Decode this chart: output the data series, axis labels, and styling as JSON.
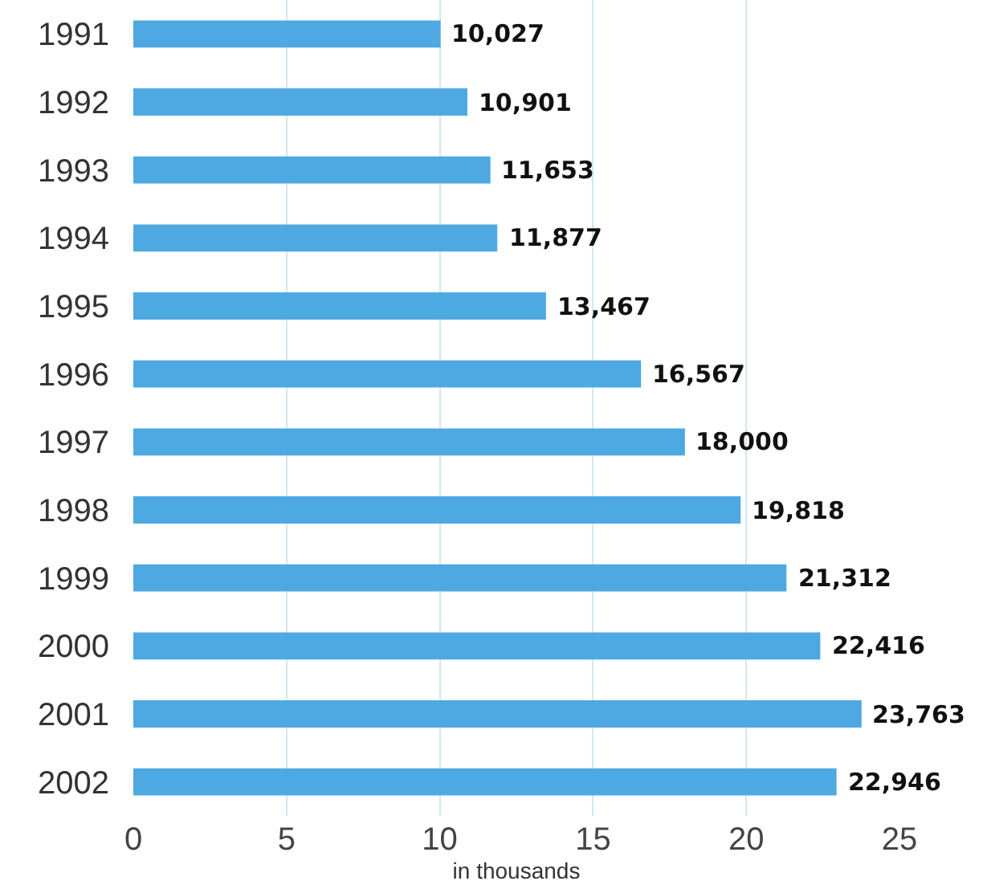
{
  "chart_data": {
    "type": "bar",
    "orientation": "horizontal",
    "xlabel": "in thousands",
    "categories": [
      "1991",
      "1992",
      "1993",
      "1994",
      "1995",
      "1996",
      "1997",
      "1998",
      "1999",
      "2000",
      "2001",
      "2002"
    ],
    "values": [
      10.027,
      10.901,
      11.653,
      11.877,
      13.467,
      16.567,
      18.0,
      19.818,
      21.312,
      22.416,
      23.763,
      22.946
    ],
    "annotations": [
      {
        "text": "10,027",
        "x": 10.027,
        "y": "1991"
      },
      {
        "text": "10,901",
        "x": 10.901,
        "y": "1992"
      },
      {
        "text": "11,653",
        "x": 11.653,
        "y": "1993"
      },
      {
        "text": "11,877",
        "x": 11.877,
        "y": "1994"
      },
      {
        "text": "13,467",
        "x": 13.467,
        "y": "1995"
      },
      {
        "text": "16,567",
        "x": 16.567,
        "y": "1996"
      },
      {
        "text": "18,000",
        "x": 18.0,
        "y": "1997"
      },
      {
        "text": "19,818",
        "x": 19.818,
        "y": "1998"
      },
      {
        "text": "21,312",
        "x": 21.312,
        "y": "1999"
      },
      {
        "text": "22,416",
        "x": 22.416,
        "y": "2000"
      },
      {
        "text": "23,763",
        "x": 23.763,
        "y": "2001"
      },
      {
        "text": "22,946",
        "x": 22.946,
        "y": "2002"
      }
    ],
    "color": "#4ea9e2",
    "xlim": [
      0,
      25
    ],
    "xticks": [
      0,
      5,
      10,
      15,
      20,
      25
    ],
    "grid": "x"
  }
}
